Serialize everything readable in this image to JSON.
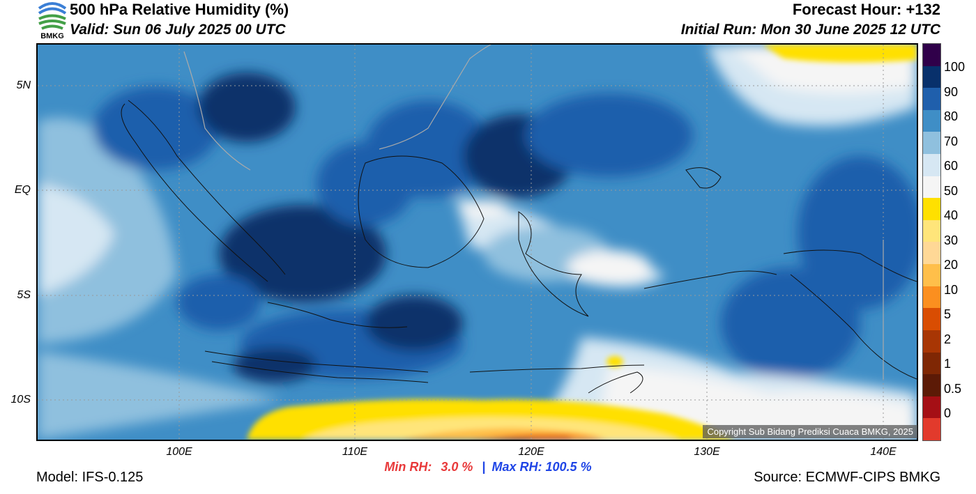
{
  "header": {
    "title": "500 hPa Relative Humidity (%)",
    "valid": "Valid: Sun 06 July 2025 00 UTC",
    "forecast_hour": "Forecast Hour: +132",
    "initial_run": "Initial Run: Mon 30 June 2025 12 UTC",
    "logo_text": "BMKG"
  },
  "map": {
    "lat_labels": [
      "5N",
      "EQ",
      "5S",
      "10S"
    ],
    "lon_labels": [
      "100E",
      "110E",
      "120E",
      "130E",
      "140E"
    ],
    "copyright": "Copyright Sub Bidang Prediksi Cuaca BMKG, 2025"
  },
  "colorbar": {
    "labels": [
      "100",
      "90",
      "80",
      "70",
      "60",
      "50",
      "40",
      "30",
      "20",
      "10",
      "5",
      "2",
      "1",
      "0.5",
      "0"
    ],
    "colors": [
      "#30004a",
      "#08306b",
      "#1f5fac",
      "#3f8ec6",
      "#8fc0de",
      "#d6e7f3",
      "#f5f5f5",
      "#ffe000",
      "#ffe57a",
      "#ffd896",
      "#ffbf4a",
      "#fb8f1f",
      "#d94d02",
      "#a83604",
      "#7f2704",
      "#5c1a06",
      "#a50f15",
      "#e23a2c"
    ]
  },
  "stats": {
    "min_label": "Min RH:",
    "min_value": "3.0 %",
    "separator": "|",
    "max_label": "Max RH: 100.5 %"
  },
  "footer": {
    "model": "Model: IFS-0.125",
    "source": "Source: ECMWF-CIPS BMKG"
  }
}
